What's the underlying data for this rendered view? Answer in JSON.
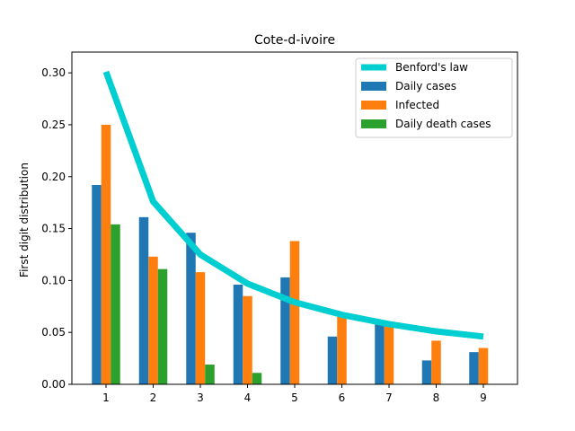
{
  "chart_data": {
    "type": "bar",
    "title": "Cote-d-ivoire",
    "xlabel": "",
    "ylabel": "First digit distribution",
    "categories": [
      "1",
      "2",
      "3",
      "4",
      "5",
      "6",
      "7",
      "8",
      "9"
    ],
    "ylim": [
      0,
      0.32
    ],
    "yticks": [
      "0.00",
      "0.05",
      "0.10",
      "0.15",
      "0.20",
      "0.25",
      "0.30"
    ],
    "legend_position": "top-right",
    "grid": false,
    "line_series": {
      "name": "Benford's law",
      "color": "#00CED1",
      "values": [
        0.301,
        0.176,
        0.125,
        0.097,
        0.079,
        0.067,
        0.058,
        0.051,
        0.046
      ]
    },
    "series": [
      {
        "name": "Daily cases",
        "color": "#1f77b4",
        "values": [
          0.192,
          0.161,
          0.146,
          0.096,
          0.103,
          0.046,
          0.058,
          0.023,
          0.031
        ]
      },
      {
        "name": "Infected",
        "color": "#ff7f0e",
        "values": [
          0.25,
          0.123,
          0.108,
          0.085,
          0.138,
          0.065,
          0.058,
          0.042,
          0.035
        ]
      },
      {
        "name": "Daily death cases",
        "color": "#2ca02c",
        "values": [
          0.154,
          0.111,
          0.019,
          0.011,
          0,
          0,
          0,
          0,
          0
        ]
      }
    ]
  }
}
